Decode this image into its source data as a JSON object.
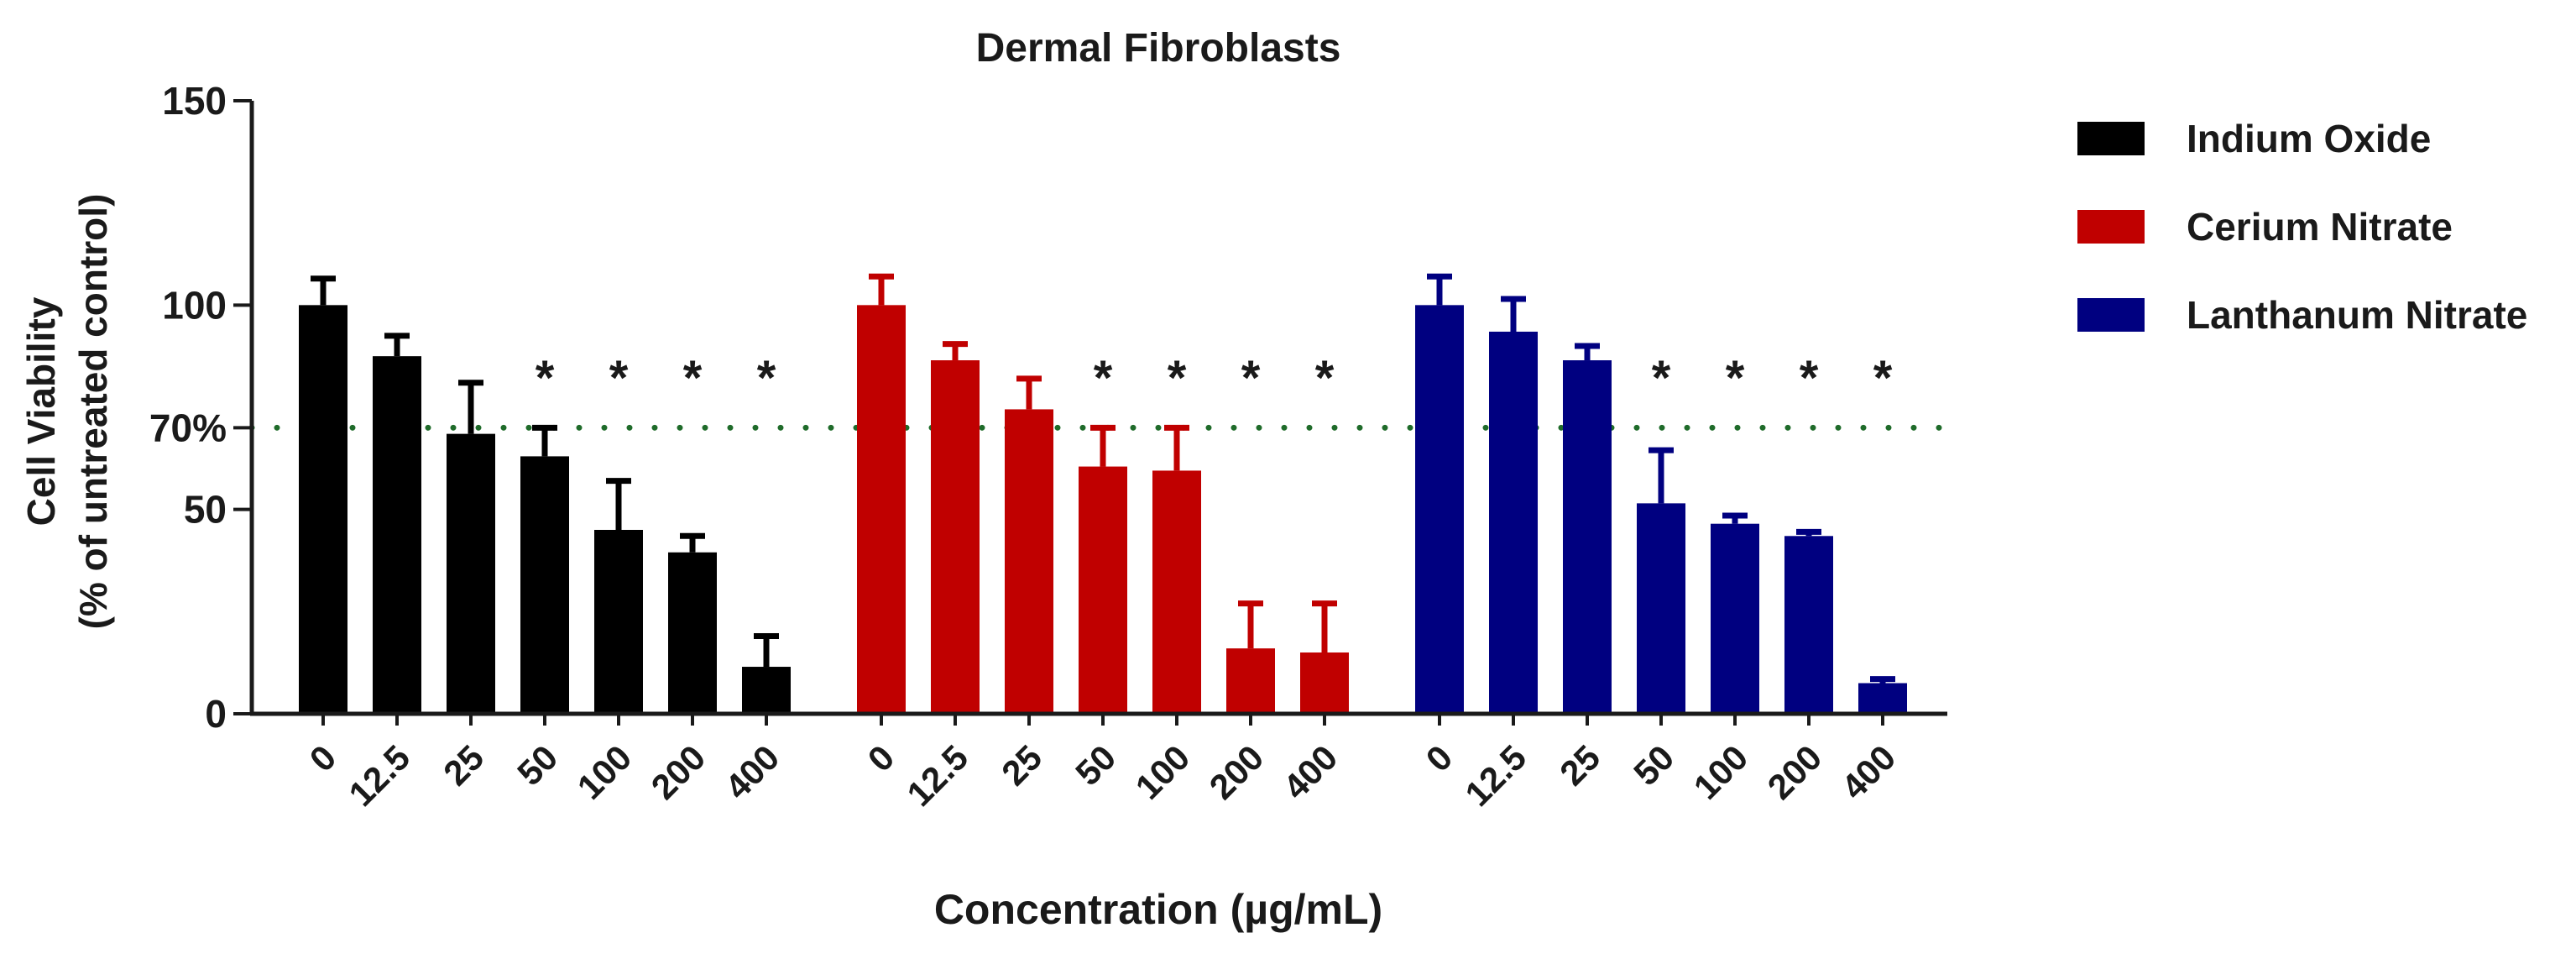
{
  "chart_data": {
    "type": "bar",
    "title": "Dermal Fibroblasts",
    "xlabel": "Concentration (µg/mL)",
    "ylabel_line1": "Cell Viability",
    "ylabel_line2": "(% of untreated control)",
    "ylim": [
      0,
      150
    ],
    "yticks": [
      {
        "value": 0,
        "label": "0"
      },
      {
        "value": 50,
        "label": "50"
      },
      {
        "value": 70,
        "label": "70%"
      },
      {
        "value": 100,
        "label": "100"
      },
      {
        "value": 150,
        "label": "150"
      }
    ],
    "threshold": {
      "value": 70,
      "color": "#1f6b2a"
    },
    "categories": [
      "0",
      "12.5",
      "25",
      "50",
      "100",
      "200",
      "400"
    ],
    "significance_marker": "*",
    "legend_position": "top-right",
    "series": [
      {
        "name": "Indium Oxide",
        "color": "#000000",
        "values": [
          100,
          87.5,
          68.5,
          63,
          45,
          39.5,
          11.5
        ],
        "errors": [
          6.5,
          5,
          12.5,
          7,
          12,
          4,
          7.5
        ],
        "significant": [
          false,
          false,
          false,
          true,
          true,
          true,
          true
        ]
      },
      {
        "name": "Cerium Nitrate",
        "color": "#c00000",
        "values": [
          100,
          86.5,
          74.5,
          60.5,
          59.5,
          16,
          15
        ],
        "errors": [
          7,
          4,
          7.5,
          9.5,
          10.5,
          11,
          12
        ],
        "significant": [
          false,
          false,
          false,
          true,
          true,
          true,
          true
        ]
      },
      {
        "name": "Lanthanum Nitrate",
        "color": "#000080",
        "values": [
          100,
          93.5,
          86.5,
          51.5,
          46.5,
          43.5,
          7.5
        ],
        "errors": [
          7,
          8,
          3.5,
          13,
          2,
          1,
          1
        ],
        "significant": [
          false,
          false,
          false,
          true,
          true,
          true,
          true
        ]
      }
    ]
  }
}
